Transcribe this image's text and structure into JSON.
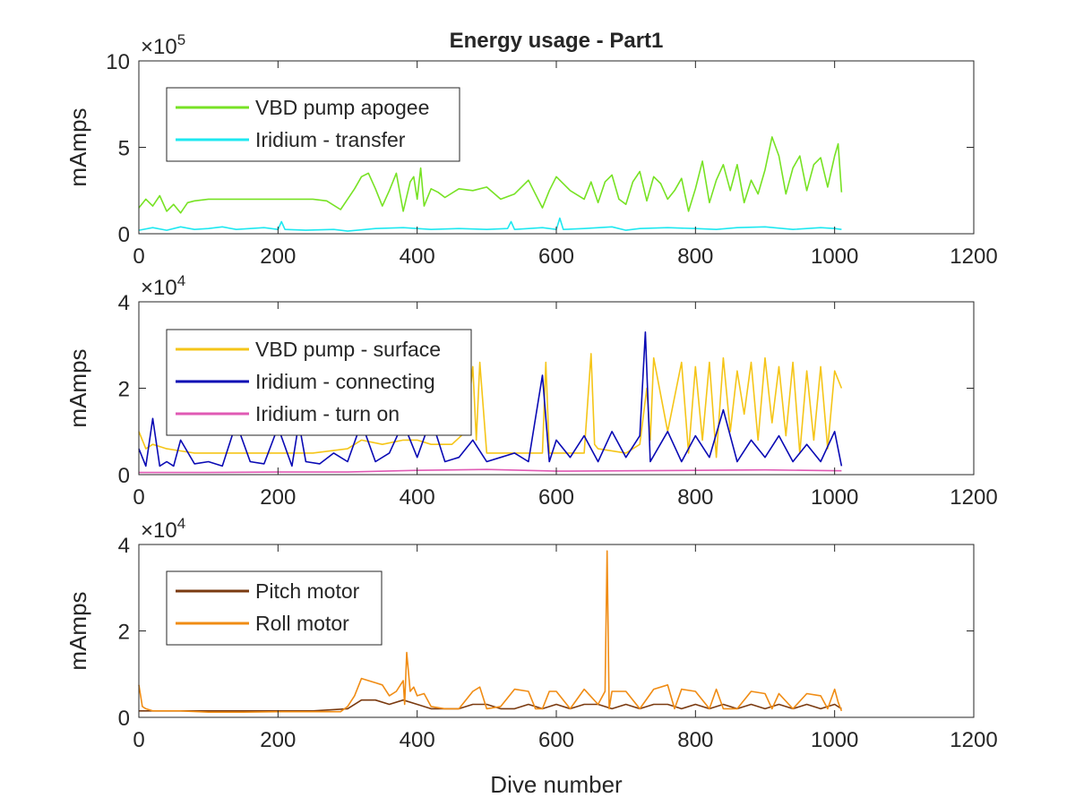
{
  "figure": {
    "title": "Energy usage - Part1",
    "xlabel": "Dive number"
  },
  "chart_data": [
    {
      "type": "line",
      "title": "Energy usage - Part1",
      "xlabel": "",
      "ylabel": "mAmps",
      "xlim": [
        0,
        1200
      ],
      "ylim": [
        0,
        1000000
      ],
      "exponent": "×10",
      "exponent_power": "5",
      "xticks": [
        "0",
        "200",
        "400",
        "600",
        "800",
        "1000",
        "1200"
      ],
      "yticks": [
        "0",
        "5",
        "10"
      ],
      "ytick_values": [
        0,
        500000,
        1000000
      ],
      "legend": "top-left",
      "series": [
        {
          "name": "VBD pump apogee",
          "color": "#77e224",
          "x": [
            0,
            10,
            20,
            30,
            40,
            50,
            60,
            70,
            80,
            100,
            150,
            200,
            250,
            270,
            290,
            300,
            310,
            320,
            330,
            340,
            350,
            360,
            370,
            380,
            390,
            395,
            400,
            405,
            410,
            420,
            430,
            440,
            460,
            480,
            500,
            520,
            540,
            560,
            580,
            590,
            600,
            620,
            640,
            650,
            660,
            670,
            680,
            690,
            700,
            710,
            720,
            730,
            740,
            750,
            760,
            770,
            780,
            790,
            800,
            810,
            820,
            830,
            840,
            850,
            860,
            870,
            880,
            890,
            900,
            910,
            920,
            930,
            940,
            950,
            960,
            970,
            980,
            990,
            1000,
            1005,
            1010
          ],
          "values": [
            150000,
            200000,
            160000,
            220000,
            130000,
            170000,
            120000,
            180000,
            190000,
            200000,
            200000,
            200000,
            200000,
            190000,
            140000,
            200000,
            260000,
            330000,
            350000,
            260000,
            160000,
            250000,
            350000,
            130000,
            300000,
            330000,
            200000,
            380000,
            160000,
            260000,
            240000,
            210000,
            260000,
            250000,
            270000,
            200000,
            230000,
            310000,
            150000,
            250000,
            330000,
            250000,
            200000,
            300000,
            180000,
            300000,
            340000,
            200000,
            170000,
            300000,
            360000,
            190000,
            330000,
            290000,
            200000,
            250000,
            320000,
            130000,
            260000,
            420000,
            180000,
            310000,
            400000,
            250000,
            400000,
            180000,
            310000,
            230000,
            370000,
            560000,
            450000,
            230000,
            380000,
            450000,
            250000,
            400000,
            440000,
            270000,
            450000,
            520000,
            240000
          ]
        },
        {
          "name": "Iridium - transfer",
          "color": "#1ee8f0",
          "x": [
            0,
            20,
            40,
            60,
            80,
            100,
            120,
            140,
            160,
            180,
            200,
            205,
            210,
            240,
            280,
            300,
            340,
            380,
            420,
            460,
            500,
            530,
            535,
            540,
            580,
            600,
            605,
            610,
            640,
            680,
            700,
            720,
            760,
            800,
            830,
            860,
            900,
            940,
            980,
            1000,
            1010
          ],
          "values": [
            20000,
            35000,
            20000,
            40000,
            25000,
            30000,
            40000,
            25000,
            30000,
            35000,
            25000,
            70000,
            25000,
            20000,
            25000,
            15000,
            30000,
            35000,
            25000,
            30000,
            25000,
            30000,
            70000,
            25000,
            35000,
            25000,
            90000,
            25000,
            30000,
            40000,
            20000,
            30000,
            35000,
            30000,
            25000,
            35000,
            40000,
            25000,
            35000,
            30000,
            25000
          ]
        }
      ]
    },
    {
      "type": "line",
      "title": "",
      "xlabel": "",
      "ylabel": "mAmps",
      "xlim": [
        0,
        1200
      ],
      "ylim": [
        0,
        40000
      ],
      "exponent": "×10",
      "exponent_power": "4",
      "xticks": [
        "0",
        "200",
        "400",
        "600",
        "800",
        "1000",
        "1200"
      ],
      "yticks": [
        "0",
        "2",
        "4"
      ],
      "ytick_values": [
        0,
        20000,
        40000
      ],
      "legend": "top-left",
      "series": [
        {
          "name": "VBD pump - surface",
          "color": "#f5c518",
          "x": [
            0,
            5,
            10,
            20,
            30,
            40,
            60,
            80,
            100,
            150,
            200,
            250,
            300,
            320,
            350,
            380,
            400,
            420,
            450,
            470,
            480,
            485,
            490,
            500,
            520,
            560,
            580,
            585,
            590,
            600,
            640,
            650,
            655,
            660,
            700,
            720,
            730,
            735,
            740,
            760,
            780,
            790,
            800,
            810,
            820,
            830,
            840,
            850,
            860,
            870,
            880,
            890,
            900,
            910,
            920,
            930,
            940,
            950,
            960,
            970,
            980,
            990,
            1000,
            1010
          ],
          "values": [
            10000,
            8000,
            6000,
            7000,
            6500,
            6000,
            5500,
            5000,
            5000,
            5000,
            5000,
            5000,
            6000,
            8000,
            7000,
            8000,
            8000,
            7000,
            7000,
            10000,
            25000,
            8000,
            26000,
            5000,
            5000,
            5000,
            5000,
            26000,
            5000,
            5000,
            5000,
            28000,
            7000,
            6000,
            5000,
            7000,
            20000,
            8000,
            27000,
            10000,
            26000,
            5000,
            25000,
            8000,
            26000,
            4000,
            27000,
            10000,
            24000,
            14000,
            26000,
            8000,
            27000,
            12000,
            25000,
            9000,
            26000,
            5000,
            24000,
            8000,
            25000,
            6000,
            24000,
            20000
          ]
        },
        {
          "name": "Iridium - connecting",
          "color": "#0a0ab4",
          "x": [
            0,
            10,
            20,
            30,
            40,
            50,
            60,
            80,
            100,
            120,
            140,
            160,
            180,
            200,
            220,
            230,
            240,
            260,
            280,
            300,
            320,
            340,
            360,
            380,
            400,
            420,
            440,
            460,
            480,
            500,
            520,
            540,
            560,
            580,
            590,
            600,
            620,
            640,
            660,
            680,
            700,
            720,
            728,
            735,
            760,
            780,
            800,
            820,
            840,
            860,
            880,
            900,
            920,
            940,
            960,
            980,
            1000,
            1010
          ],
          "values": [
            6000,
            2000,
            13000,
            2000,
            3000,
            2000,
            8000,
            2500,
            3000,
            2000,
            12000,
            3000,
            2500,
            11000,
            2000,
            12000,
            3000,
            2500,
            5000,
            3000,
            12000,
            3000,
            5000,
            12000,
            4000,
            13000,
            3000,
            4000,
            8000,
            3000,
            4000,
            5000,
            3000,
            23000,
            3000,
            8000,
            4000,
            9000,
            3000,
            10000,
            4000,
            9000,
            33000,
            3000,
            10000,
            3000,
            9000,
            4000,
            15000,
            3000,
            8000,
            4000,
            9000,
            3000,
            7000,
            3000,
            10000,
            2000
          ]
        },
        {
          "name": "Iridium - turn on",
          "color": "#e05ab4",
          "x": [
            0,
            100,
            200,
            300,
            400,
            500,
            600,
            700,
            800,
            900,
            1010
          ],
          "values": [
            500,
            500,
            600,
            600,
            1000,
            1200,
            800,
            900,
            1000,
            1100,
            900
          ]
        }
      ]
    },
    {
      "type": "line",
      "title": "",
      "xlabel": "Dive number",
      "ylabel": "mAmps",
      "xlim": [
        0,
        1200
      ],
      "ylim": [
        0,
        40000
      ],
      "exponent": "×10",
      "exponent_power": "4",
      "xticks": [
        "0",
        "200",
        "400",
        "600",
        "800",
        "1000",
        "1200"
      ],
      "yticks": [
        "0",
        "2",
        "4"
      ],
      "ytick_values": [
        0,
        20000,
        40000
      ],
      "legend": "top-left",
      "series": [
        {
          "name": "Pitch motor",
          "color": "#7a3a10",
          "x": [
            0,
            50,
            100,
            150,
            200,
            250,
            300,
            320,
            340,
            360,
            380,
            400,
            420,
            440,
            460,
            480,
            500,
            520,
            540,
            560,
            580,
            600,
            620,
            640,
            660,
            680,
            700,
            720,
            740,
            760,
            780,
            800,
            820,
            840,
            860,
            880,
            900,
            920,
            940,
            960,
            980,
            1000,
            1010
          ],
          "values": [
            1500,
            1500,
            1500,
            1500,
            1500,
            1500,
            2000,
            4000,
            4000,
            3000,
            4000,
            3000,
            2000,
            2000,
            2000,
            3000,
            3000,
            2000,
            2000,
            3000,
            2000,
            3000,
            2000,
            3000,
            3000,
            2000,
            3000,
            2000,
            3000,
            3000,
            2000,
            3000,
            2000,
            3000,
            2000,
            3000,
            2000,
            3000,
            2000,
            3000,
            2000,
            3000,
            2000
          ]
        },
        {
          "name": "Roll motor",
          "color": "#f08c14",
          "x": [
            0,
            5,
            10,
            20,
            40,
            60,
            100,
            150,
            200,
            250,
            290,
            300,
            310,
            320,
            330,
            340,
            350,
            360,
            370,
            380,
            382,
            385,
            390,
            395,
            400,
            410,
            420,
            440,
            460,
            480,
            490,
            500,
            520,
            540,
            560,
            570,
            580,
            590,
            600,
            620,
            640,
            660,
            670,
            673,
            676,
            680,
            700,
            720,
            740,
            760,
            770,
            780,
            800,
            820,
            830,
            840,
            860,
            880,
            900,
            910,
            920,
            940,
            960,
            980,
            990,
            1000,
            1005,
            1010
          ],
          "values": [
            7500,
            2500,
            2000,
            1500,
            1500,
            1500,
            1200,
            1200,
            1300,
            1300,
            1300,
            2500,
            5000,
            9000,
            8500,
            8000,
            7500,
            5000,
            6000,
            8500,
            3000,
            15000,
            6000,
            7000,
            5000,
            5500,
            2500,
            2000,
            2000,
            6000,
            7000,
            2000,
            2500,
            6500,
            6000,
            2000,
            2000,
            6000,
            6000,
            2000,
            6500,
            3000,
            6000,
            38500,
            2000,
            6000,
            6000,
            2000,
            6500,
            7500,
            2000,
            6500,
            6000,
            2000,
            6500,
            2000,
            2000,
            6000,
            5500,
            2000,
            5500,
            2000,
            5500,
            5000,
            2000,
            6500,
            3500,
            1500
          ]
        }
      ]
    }
  ]
}
